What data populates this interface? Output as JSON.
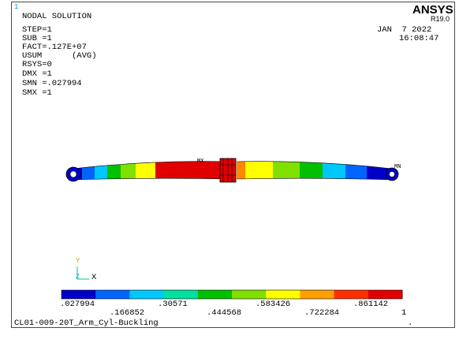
{
  "window_index": "1",
  "brand": {
    "name": "ANSYS",
    "release": "R19.0"
  },
  "solution_info": {
    "title": "NODAL SOLUTION",
    "lines": [
      "STEP=1",
      "SUB =1",
      "FACT=.127E+07",
      "USUM      (AVG)",
      "RSYS=0",
      "DMX =1",
      "SMN =.027994",
      "SMX =1"
    ]
  },
  "timestamp": {
    "date": "JAN  7 2022",
    "time": "16:08:47"
  },
  "markers": {
    "max": "MX",
    "min": "MN"
  },
  "triad": {
    "y_label": "Y",
    "z_label": "Z",
    "x_label": "X"
  },
  "legend": {
    "colors": [
      "#0000c8",
      "#0064ff",
      "#00c8ff",
      "#00e0a0",
      "#00c000",
      "#80e000",
      "#ffff00",
      "#ffa000",
      "#ff3000",
      "#e00000"
    ],
    "labels_upper": [
      ".027994",
      ".30571",
      ".583426",
      ".861142"
    ],
    "labels_lower": [
      ".166852",
      ".444568",
      ".722284",
      "1"
    ]
  },
  "model_name": "CL01-009-20T_Arm_Cyl-Buckling",
  "footer_dot": "."
}
